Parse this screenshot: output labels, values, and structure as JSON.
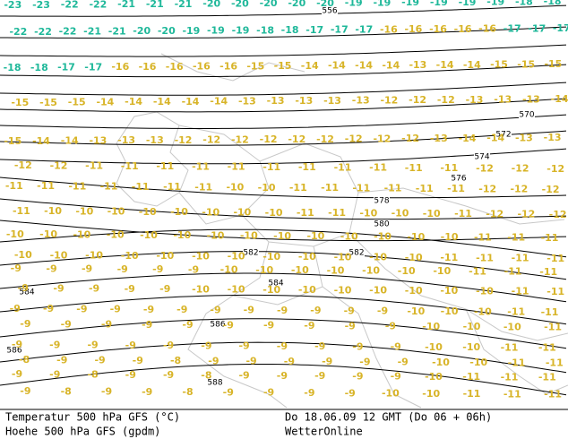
{
  "map": {
    "contour_labels": [
      556,
      570,
      572,
      574,
      576,
      578,
      580,
      582,
      582,
      584,
      584,
      586,
      586,
      588
    ],
    "temperature_rows": [
      [
        -23,
        -23,
        -22,
        -22,
        -21,
        -21,
        -21,
        -20,
        -20,
        -20,
        -20,
        -20,
        -19,
        -19,
        -19,
        -19,
        -19,
        -19,
        -18,
        -18
      ],
      [
        -22,
        -22,
        -22,
        -21,
        -21,
        -20,
        -20,
        -19,
        -19,
        -19,
        -18,
        -18,
        -17,
        -17,
        -17,
        -16,
        -16,
        -16,
        -16,
        -16,
        -17,
        -17,
        -17
      ],
      [
        -18,
        -18,
        -17,
        -17,
        -16,
        -16,
        -16,
        -16,
        -16,
        -15,
        -15,
        -14,
        -14,
        -14,
        -14,
        -13,
        -14,
        -14,
        -15,
        -15,
        -15
      ],
      [
        -15,
        -15,
        -15,
        -14,
        -14,
        -14,
        -14,
        -14,
        -13,
        -13,
        -13,
        -13,
        -13,
        -12,
        -12,
        -12,
        -13,
        -13,
        -13,
        -14
      ],
      [
        -15,
        -14,
        -14,
        -13,
        -13,
        -13,
        -12,
        -12,
        -12,
        -12,
        -12,
        -12,
        -12,
        -12,
        -12,
        -13,
        -14,
        -14,
        -13,
        -13
      ],
      [
        -12,
        -12,
        -11,
        -11,
        -11,
        -11,
        -11,
        -11,
        -11,
        -11,
        -11,
        -11,
        -11,
        -12,
        -12,
        -12
      ],
      [
        -11,
        -11,
        -11,
        -11,
        -11,
        -11,
        -11,
        -10,
        -10,
        -11,
        -11,
        -11,
        -11,
        -11,
        -11,
        -12,
        -12,
        -12
      ],
      [
        -11,
        -10,
        -10,
        -10,
        -10,
        -10,
        -10,
        -10,
        -10,
        -11,
        -11,
        -10,
        -10,
        -10,
        -11,
        -12,
        -12,
        -12
      ],
      [
        -10,
        -10,
        -10,
        -10,
        -10,
        -10,
        -10,
        -10,
        -10,
        -10,
        -10,
        -10,
        -10,
        -10,
        -11,
        -11,
        -11
      ],
      [
        -10,
        -10,
        -10,
        -10,
        -10,
        -10,
        -10,
        -10,
        -10,
        -10,
        -10,
        -10,
        -11,
        -11,
        -11,
        -11
      ],
      [
        -9,
        -9,
        -9,
        -9,
        -9,
        -9,
        -10,
        -10,
        -10,
        -10,
        -10,
        -10,
        -10,
        -11,
        -11,
        -11
      ],
      [
        -9,
        -9,
        -9,
        -9,
        -9,
        -10,
        -10,
        -10,
        -10,
        -10,
        -10,
        -10,
        -10,
        -10,
        -11,
        -11
      ],
      [
        -9,
        -9,
        -9,
        -9,
        -9,
        -9,
        -9,
        -9,
        -9,
        -9,
        -9,
        -9,
        -10,
        -10,
        -10,
        -11,
        -11
      ],
      [
        -9,
        -9,
        -9,
        -9,
        -9,
        -9,
        -9,
        -9,
        -9,
        -9,
        -10,
        -10,
        -10,
        -11
      ],
      [
        -9,
        -9,
        -9,
        -9,
        -9,
        -9,
        -9,
        -9,
        -9,
        -9,
        -9,
        -10,
        -10,
        -11,
        -11
      ],
      [
        -8,
        -9,
        -9,
        -9,
        -8,
        -9,
        -9,
        -9,
        -9,
        -9,
        -9,
        -10,
        -10,
        -11,
        -11
      ],
      [
        -9,
        -9,
        -8,
        -9,
        -9,
        -8,
        -9,
        -9,
        -9,
        -9,
        -9,
        -10,
        -11,
        -11,
        -11
      ],
      [
        -9,
        -8,
        -9,
        -9,
        -8,
        -9,
        -9,
        -9,
        -9,
        -10,
        -10,
        -11,
        -11,
        -11
      ]
    ]
  },
  "footer": {
    "left_line1": "Temperatur 500 hPa GFS (°C)",
    "left_line2": "Hoehe 500 hPa GFS (gpdm)",
    "right_line1": "Do 18.06.09 12 GMT (Do 06 + 06h)",
    "right_line2": "WetterOnline"
  }
}
